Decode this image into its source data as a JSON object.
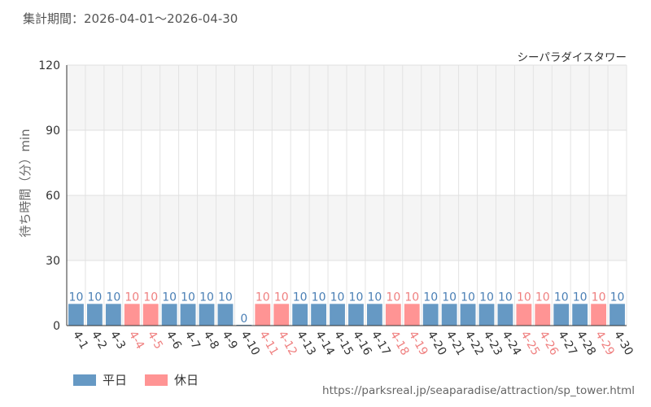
{
  "header": {
    "period": "集計期間：2026-04-01～2026-04-30"
  },
  "chart_data": {
    "type": "bar",
    "title": "シーパラダイスタワー",
    "ylabel": "待ち時間（分）min",
    "ylim": [
      0,
      120
    ],
    "yticks": [
      0,
      30,
      60,
      90,
      120
    ],
    "grid": true,
    "categories": [
      "4-1",
      "4-2",
      "4-3",
      "4-4",
      "4-5",
      "4-6",
      "4-7",
      "4-8",
      "4-9",
      "4-10",
      "4-11",
      "4-12",
      "4-13",
      "4-14",
      "4-15",
      "4-16",
      "4-17",
      "4-18",
      "4-19",
      "4-20",
      "4-21",
      "4-22",
      "4-23",
      "4-24",
      "4-25",
      "4-26",
      "4-27",
      "4-28",
      "4-29",
      "4-30"
    ],
    "values": [
      10,
      10,
      10,
      10,
      10,
      10,
      10,
      10,
      10,
      0,
      10,
      10,
      10,
      10,
      10,
      10,
      10,
      10,
      10,
      10,
      10,
      10,
      10,
      10,
      10,
      10,
      10,
      10,
      10,
      10
    ],
    "day_type": [
      "平日",
      "平日",
      "平日",
      "休日",
      "休日",
      "平日",
      "平日",
      "平日",
      "平日",
      "平日",
      "休日",
      "休日",
      "平日",
      "平日",
      "平日",
      "平日",
      "平日",
      "休日",
      "休日",
      "平日",
      "平日",
      "平日",
      "平日",
      "平日",
      "休日",
      "休日",
      "平日",
      "平日",
      "休日",
      "平日"
    ],
    "series": [
      {
        "name": "平日",
        "color": "#6699c4"
      },
      {
        "name": "休日",
        "color": "#ff9494"
      }
    ],
    "label_colors": {
      "平日": "#4a7fb5",
      "休日": "#ef7f7f"
    }
  },
  "footer": {
    "source": "https://parksreal.jp/seaparadise/attraction/sp_tower.html"
  }
}
